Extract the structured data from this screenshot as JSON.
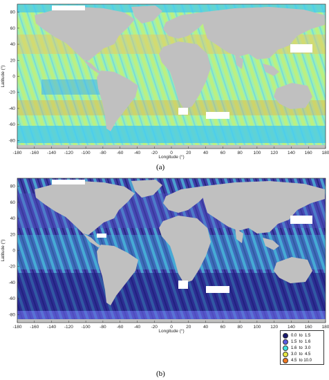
{
  "panels": [
    {
      "id": "a",
      "label": "(a)",
      "xlabel": "Longitude (°)",
      "ylabel": "Latitude (°)",
      "x_ticks": [
        "-180",
        "-160",
        "-140",
        "-120",
        "-100",
        "-80",
        "-60",
        "-40",
        "-20",
        "0",
        "20",
        "40",
        "60",
        "80",
        "100",
        "120",
        "140",
        "160",
        "180"
      ],
      "y_ticks": [
        "80",
        "60",
        "40",
        "20",
        "0",
        "-20",
        "-40",
        "-60",
        "-80"
      ],
      "ocean_base_color": "#7ff0c0",
      "warm_band_color": "#f0c060",
      "cool_band_color": "#5ac8f0"
    },
    {
      "id": "b",
      "label": "(b)",
      "xlabel": "Longitude (°)",
      "ylabel": "Latitude (°)",
      "x_ticks": [
        "-180",
        "-160",
        "-140",
        "-120",
        "-100",
        "-80",
        "-60",
        "-40",
        "-20",
        "0",
        "20",
        "40",
        "60",
        "80",
        "100",
        "120",
        "140",
        "160",
        "180"
      ],
      "y_ticks": [
        "80",
        "60",
        "40",
        "20",
        "0",
        "-20",
        "-40",
        "-60",
        "-80"
      ],
      "ocean_base_color": "#3a3aa0",
      "warm_band_color": "#40d0e8",
      "cool_band_color": "#1e1e80"
    }
  ],
  "legend": [
    {
      "label": "0.0  to  1.5",
      "color": "#1a1a6e"
    },
    {
      "label": "1.5  to  1.6",
      "color": "#5a5ae0"
    },
    {
      "label": "1.6  to  3.0",
      "color": "#40e0e0"
    },
    {
      "label": "3.0  to  4.5",
      "color": "#e8e840"
    },
    {
      "label": "4.5  to 10.0",
      "color": "#f07820"
    }
  ],
  "land_color": "#c0c0c0"
}
